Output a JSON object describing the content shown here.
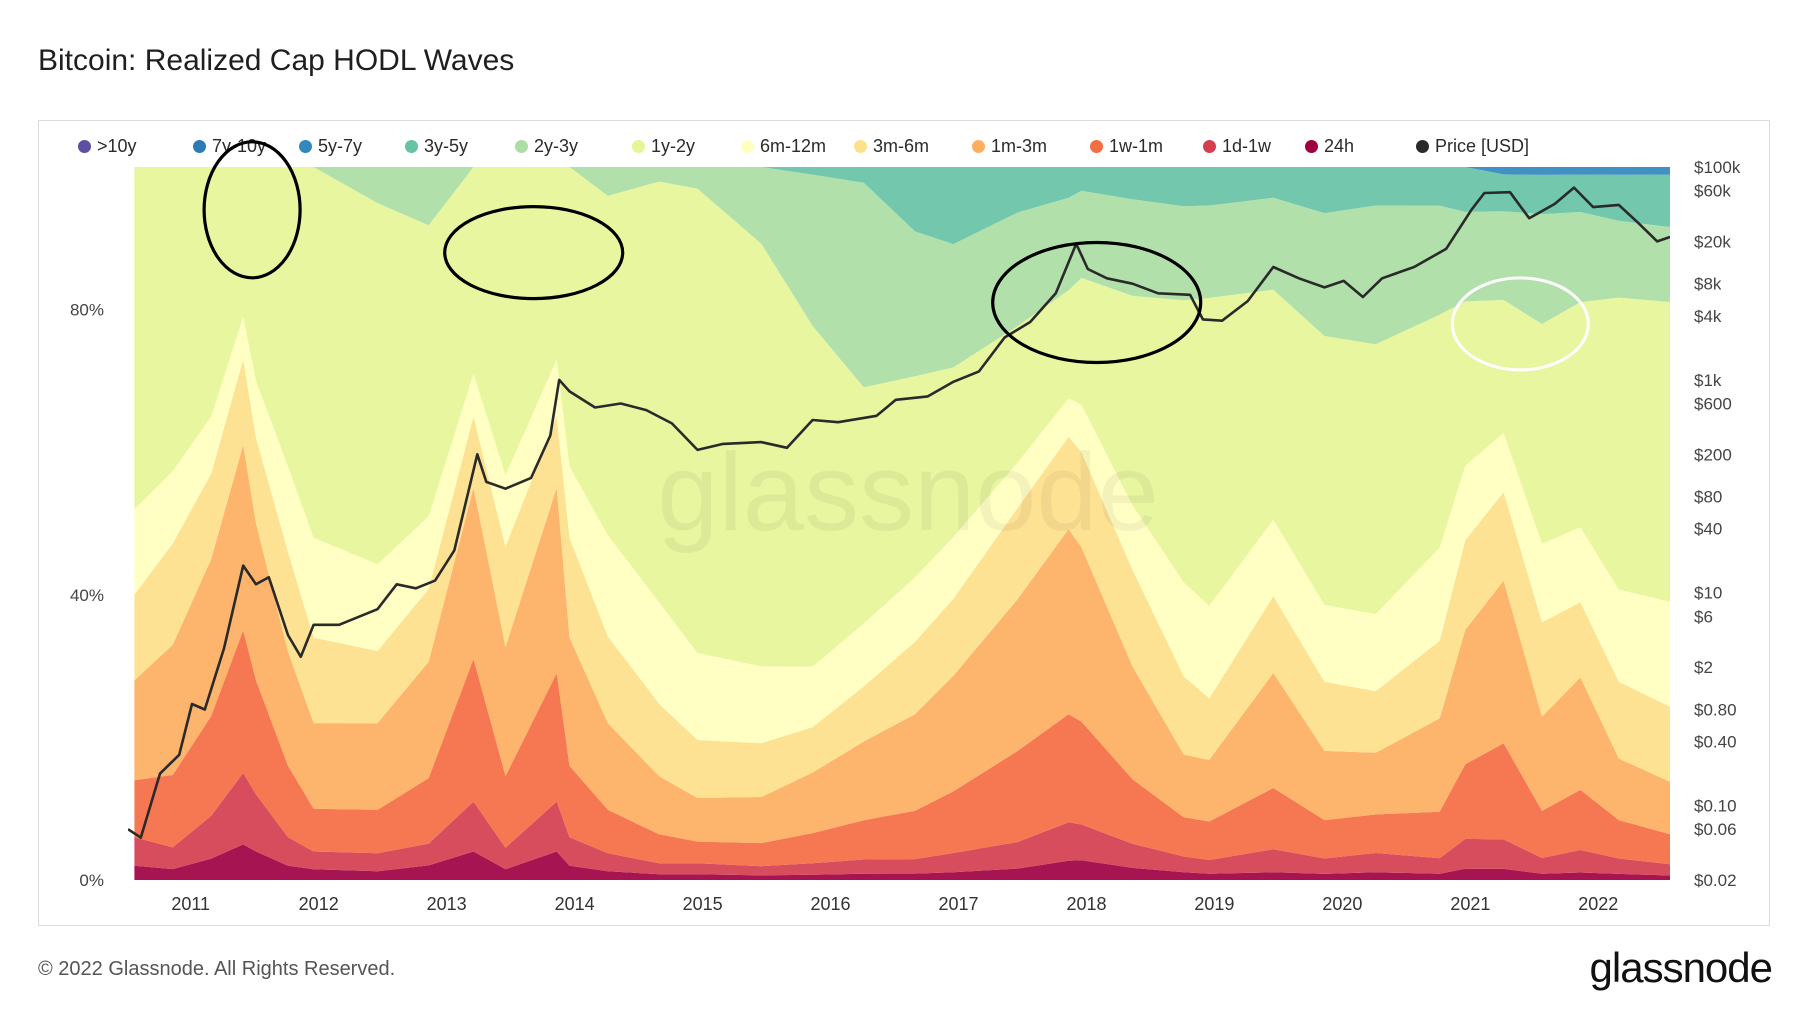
{
  "title": "Bitcoin: Realized Cap HODL Waves",
  "footer": {
    "copyright": "© 2022 Glassnode. All Rights Reserved.",
    "logo": "glassnode"
  },
  "watermark": "glassnode",
  "chart_data": {
    "type": "area",
    "title": "Bitcoin: Realized Cap HODL Waves",
    "stacked": true,
    "x": [
      2010.6,
      2010.9,
      2011.2,
      2011.45,
      2011.55,
      2011.8,
      2012.0,
      2012.5,
      2012.9,
      2013.25,
      2013.5,
      2013.9,
      2014.0,
      2014.3,
      2014.7,
      2015.0,
      2015.5,
      2015.9,
      2016.3,
      2016.7,
      2017.0,
      2017.5,
      2017.9,
      2018.0,
      2018.4,
      2018.8,
      2019.0,
      2019.5,
      2019.9,
      2020.3,
      2020.8,
      2021.0,
      2021.3,
      2021.6,
      2021.9,
      2022.2,
      2022.6
    ],
    "x_ticks": [
      "2011",
      "2012",
      "2013",
      "2014",
      "2015",
      "2016",
      "2017",
      "2018",
      "2019",
      "2020",
      "2021",
      "2022"
    ],
    "y_ticks_left": [
      "0%",
      "40%",
      "80%"
    ],
    "y_ticks_right": [
      "$0.02",
      "$0.06",
      "$0.10",
      "$0.40",
      "$0.80",
      "$2",
      "$6",
      "$10",
      "$40",
      "$80",
      "$200",
      "$600",
      "$1k",
      "$4k",
      "$8k",
      "$20k",
      "$60k",
      "$100k"
    ],
    "ylim_left": [
      0,
      100
    ],
    "ylim_right": [
      0.02,
      100000
    ],
    "right_axis_scale": "log",
    "legend_position": "top",
    "series": [
      {
        "name": "24h",
        "color": "#9e0142",
        "values": [
          2,
          1.5,
          3,
          5,
          4,
          2,
          1.5,
          1.2,
          2,
          4,
          1.5,
          4,
          2,
          1.2,
          0.8,
          0.8,
          0.6,
          0.7,
          0.8,
          0.8,
          1,
          1.5,
          2.5,
          2.5,
          1.5,
          1,
          0.8,
          1,
          0.8,
          1,
          0.8,
          1.5,
          1.5,
          0.8,
          1,
          0.8,
          0.6
        ]
      },
      {
        "name": "1d-1w",
        "color": "#d53e4f",
        "values": [
          4,
          3,
          6,
          10,
          8,
          4,
          2.5,
          2.5,
          3,
          7,
          3,
          7,
          4,
          2.5,
          1.5,
          1.5,
          1.2,
          1.5,
          1.8,
          1.8,
          2.5,
          3.5,
          5,
          4.5,
          3,
          2,
          1.8,
          3,
          2,
          2.5,
          2,
          4,
          4,
          2,
          3,
          2,
          1.5
        ]
      },
      {
        "name": "1w-1m",
        "color": "#f46d43",
        "values": [
          8,
          10,
          14,
          20,
          16,
          10,
          6,
          6,
          9,
          20,
          10,
          18,
          10,
          6,
          4,
          3,
          3,
          4,
          5,
          6,
          8,
          12,
          14,
          13,
          8,
          5,
          5,
          8,
          5,
          5,
          6,
          10,
          13,
          6,
          8,
          5,
          4
        ]
      },
      {
        "name": "1m-3m",
        "color": "#fdae61",
        "values": [
          14,
          18,
          22,
          26,
          22,
          16,
          12,
          12,
          16,
          24,
          18,
          26,
          18,
          12,
          8,
          6,
          6,
          8,
          10,
          12,
          15,
          20,
          24,
          22,
          14,
          8,
          8,
          15,
          9,
          8,
          12,
          18,
          22,
          12,
          15,
          8,
          7
        ]
      },
      {
        "name": "3m-6m",
        "color": "#fee08b",
        "values": [
          12,
          14,
          12,
          12,
          12,
          14,
          12,
          10,
          10,
          10,
          14,
          10,
          14,
          12,
          10,
          8,
          7,
          6,
          7,
          9,
          10,
          12,
          12,
          12,
          12,
          10,
          8,
          10,
          9,
          8,
          10,
          12,
          12,
          12,
          10,
          10,
          10
        ]
      },
      {
        "name": "6m-12m",
        "color": "#ffffbf",
        "values": [
          12,
          10,
          8,
          6,
          8,
          12,
          14,
          12,
          10,
          6,
          10,
          8,
          10,
          14,
          14,
          12,
          10,
          8,
          8,
          8,
          8,
          6,
          5,
          6,
          8,
          12,
          12,
          10,
          10,
          10,
          12,
          10,
          8,
          10,
          10,
          12,
          14
        ]
      },
      {
        "name": "1y-2y",
        "color": "#e6f598",
        "values": [
          48,
          42,
          35,
          21,
          30,
          42,
          52,
          50,
          40,
          29,
          43,
          27,
          42,
          47,
          58,
          64,
          55,
          45,
          30,
          25,
          22,
          18,
          14,
          16,
          26,
          36,
          40,
          30,
          35,
          35,
          30,
          22,
          18,
          28,
          30,
          38,
          40
        ]
      },
      {
        "name": "2y-3y",
        "color": "#abdda4",
        "values": [
          0,
          0,
          0,
          0,
          0,
          0,
          0,
          5,
          8,
          0,
          0,
          0,
          0,
          4,
          2,
          3,
          10,
          20,
          26,
          18,
          16,
          15,
          12,
          11,
          12,
          12,
          12,
          12,
          16,
          18,
          14,
          12,
          12,
          14,
          12,
          10,
          10
        ]
      },
      {
        "name": "3y-5y",
        "color": "#66c2a5",
        "values": [
          0,
          0,
          0,
          0,
          0,
          0,
          0,
          0,
          0,
          0,
          0,
          0,
          0,
          0,
          0,
          0,
          0,
          1,
          2,
          8,
          10,
          6,
          4,
          3,
          4,
          5,
          5,
          4,
          6,
          5,
          5,
          6,
          5,
          5,
          5,
          6,
          7
        ]
      },
      {
        "name": "5y-7y",
        "color": "#3288bd",
        "values": [
          0,
          0,
          0,
          0,
          0,
          0,
          0,
          0,
          0,
          0,
          0,
          0,
          0,
          0,
          0,
          0,
          0,
          0,
          0,
          0,
          0,
          0,
          0,
          0,
          0,
          0,
          0,
          0,
          0,
          0,
          0,
          0,
          1,
          1,
          1,
          1,
          1
        ]
      },
      {
        "name": "7y-10y",
        "color": "#2c7bb6",
        "values": [
          0,
          0,
          0,
          0,
          0,
          0,
          0,
          0,
          0,
          0,
          0,
          0,
          0,
          0,
          0,
          0,
          0,
          0,
          0,
          0,
          0,
          0,
          0,
          0,
          0,
          0,
          0,
          0,
          0,
          0,
          0,
          0,
          0,
          0,
          0,
          0,
          0
        ]
      },
      {
        "name": ">10y",
        "color": "#5e4fa2",
        "values": [
          0,
          0,
          0,
          0,
          0,
          0,
          0,
          0,
          0,
          0,
          0,
          0,
          0,
          0,
          0,
          0,
          0,
          0,
          0,
          0,
          0,
          0,
          0,
          0,
          0,
          0,
          0,
          0,
          0,
          0,
          0,
          0,
          0,
          0,
          0,
          0,
          0
        ]
      }
    ],
    "price": {
      "name": "Price [USD]",
      "color": "#2a2a2a",
      "points": [
        [
          2010.55,
          0.06
        ],
        [
          2010.65,
          0.05
        ],
        [
          2010.8,
          0.2
        ],
        [
          2010.95,
          0.3
        ],
        [
          2011.05,
          0.9
        ],
        [
          2011.15,
          0.8
        ],
        [
          2011.3,
          3
        ],
        [
          2011.45,
          18
        ],
        [
          2011.55,
          12
        ],
        [
          2011.65,
          14
        ],
        [
          2011.8,
          4
        ],
        [
          2011.9,
          2.5
        ],
        [
          2012.0,
          5
        ],
        [
          2012.2,
          5
        ],
        [
          2012.5,
          7
        ],
        [
          2012.65,
          12
        ],
        [
          2012.8,
          11
        ],
        [
          2012.95,
          13
        ],
        [
          2013.1,
          25
        ],
        [
          2013.28,
          200
        ],
        [
          2013.35,
          110
        ],
        [
          2013.5,
          95
        ],
        [
          2013.7,
          120
        ],
        [
          2013.85,
          300
        ],
        [
          2013.92,
          1000
        ],
        [
          2014.0,
          780
        ],
        [
          2014.2,
          550
        ],
        [
          2014.4,
          600
        ],
        [
          2014.6,
          520
        ],
        [
          2014.8,
          390
        ],
        [
          2015.0,
          220
        ],
        [
          2015.2,
          250
        ],
        [
          2015.5,
          260
        ],
        [
          2015.7,
          230
        ],
        [
          2015.9,
          420
        ],
        [
          2016.1,
          400
        ],
        [
          2016.4,
          460
        ],
        [
          2016.55,
          650
        ],
        [
          2016.8,
          700
        ],
        [
          2017.0,
          960
        ],
        [
          2017.2,
          1200
        ],
        [
          2017.4,
          2500
        ],
        [
          2017.6,
          3500
        ],
        [
          2017.8,
          6500
        ],
        [
          2017.96,
          19000
        ],
        [
          2018.05,
          11000
        ],
        [
          2018.2,
          9000
        ],
        [
          2018.4,
          8000
        ],
        [
          2018.6,
          6500
        ],
        [
          2018.85,
          6300
        ],
        [
          2018.95,
          3700
        ],
        [
          2019.1,
          3600
        ],
        [
          2019.3,
          5500
        ],
        [
          2019.5,
          11500
        ],
        [
          2019.7,
          9000
        ],
        [
          2019.9,
          7400
        ],
        [
          2020.05,
          8500
        ],
        [
          2020.2,
          6000
        ],
        [
          2020.35,
          9000
        ],
        [
          2020.6,
          11500
        ],
        [
          2020.85,
          17000
        ],
        [
          2021.05,
          40000
        ],
        [
          2021.15,
          57000
        ],
        [
          2021.35,
          58000
        ],
        [
          2021.5,
          33000
        ],
        [
          2021.7,
          45000
        ],
        [
          2021.85,
          64000
        ],
        [
          2022.0,
          42000
        ],
        [
          2022.2,
          44000
        ],
        [
          2022.35,
          30000
        ],
        [
          2022.5,
          20000
        ],
        [
          2022.6,
          22000
        ]
      ]
    },
    "annotations": [
      {
        "shape": "ellipse",
        "color": "#000000",
        "x": 2011.52,
        "y": 94
      },
      {
        "shape": "ellipse",
        "color": "#000000",
        "x": 2013.72,
        "y": 88
      },
      {
        "shape": "ellipse",
        "color": "#000000",
        "x": 2018.12,
        "y": 81
      },
      {
        "shape": "ellipse",
        "color": "#ffffff",
        "x": 2021.43,
        "y": 78
      }
    ]
  }
}
